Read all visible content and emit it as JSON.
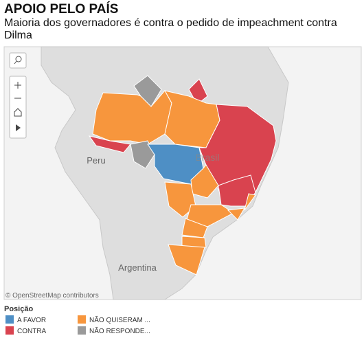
{
  "header": {
    "title": "APOIO PELO PAÍS",
    "subtitle": "Maioria dos governadores é contra o pedido de impeachment contra Dilma"
  },
  "map": {
    "labels": [
      "Peru",
      "Brasil",
      "Argentina"
    ],
    "attribution": "© OpenStreetMap contributors"
  },
  "legend": {
    "title": "Posição",
    "items": [
      {
        "label": "A FAVOR",
        "color": "#4e8fc5"
      },
      {
        "label": "CONTRA",
        "color": "#d9434f"
      },
      {
        "label": "NÃO QUISERAM ...",
        "color": "#f7963d"
      },
      {
        "label": "NÃO RESPONDE...",
        "color": "#9a9a9a"
      }
    ]
  }
}
